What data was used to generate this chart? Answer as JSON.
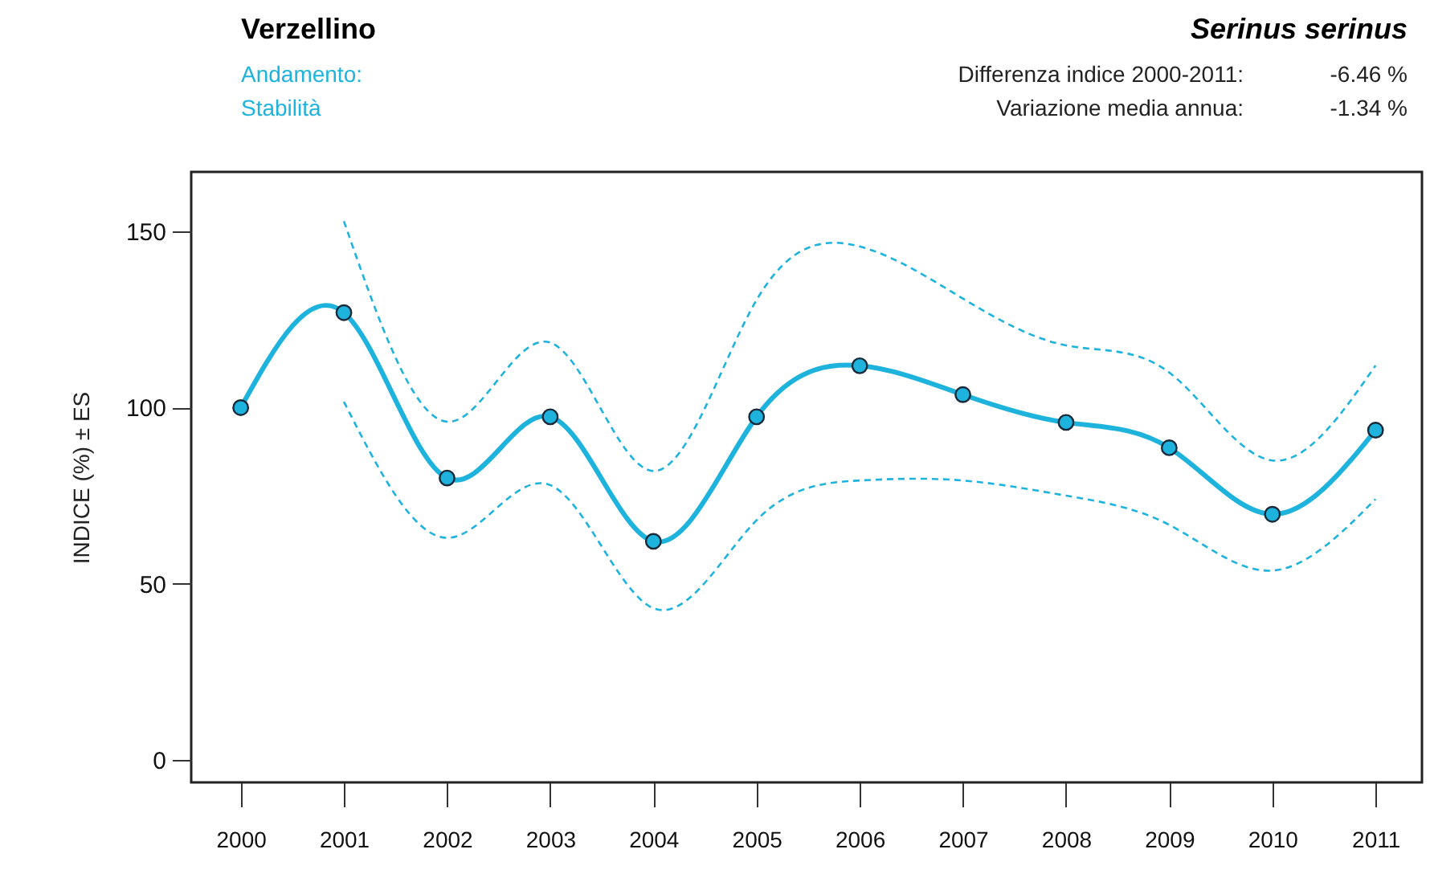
{
  "chart_data": {
    "type": "line",
    "title": "Verzellino",
    "subtitle": "Serinus serinus",
    "ylabel": "INDICE (%) ± ES",
    "annotations": [
      "Andamento:",
      "Stabilità",
      "Differenza indice 2000-2011:",
      "-6.46 %",
      "Variazione media annua:",
      "-1.34 %"
    ],
    "x": [
      2000,
      2001,
      2002,
      2003,
      2004,
      2005,
      2006,
      2007,
      2008,
      2009,
      2010,
      2011
    ],
    "series": [
      {
        "color": "#1eb3dc",
        "line_style": "dashed",
        "marker": "none",
        "values": [
          null,
          153,
          96,
          118.5,
          82,
          130.6,
          145.8,
          131,
          117.7,
          110,
          85,
          112
        ]
      },
      {
        "color": "#1eb3dc",
        "line_style": "dashed",
        "marker": "none",
        "values": [
          null,
          101.7,
          63,
          78,
          43,
          68,
          79.3,
          79.3,
          75,
          66.7,
          53.7,
          74
        ]
      },
      {
        "color": "#1eb3dc",
        "line_style": "solid",
        "marker": "circle",
        "values": [
          100,
          127,
          80,
          97.4,
          62,
          97.4,
          111.9,
          103.7,
          95.8,
          88.6,
          69.7,
          93.6
        ]
      }
    ],
    "xlim": [
      1999.52,
      2011.45
    ],
    "xticks": [
      2000,
      2001,
      2002,
      2003,
      2004,
      2005,
      2006,
      2007,
      2008,
      2009,
      2010,
      2011
    ],
    "ylim": [
      -6.5,
      167
    ],
    "yticks": [
      0,
      50,
      100,
      150
    ]
  }
}
